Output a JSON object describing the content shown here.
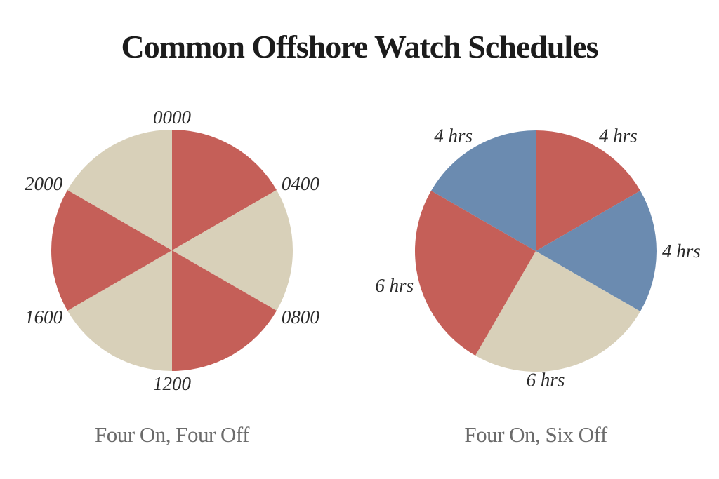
{
  "title": "Common Offshore Watch Schedules",
  "palette": {
    "red": "#c55f58",
    "cream": "#d8d0b9",
    "blue": "#6b8bb0",
    "title_color": "#1c1c1c",
    "caption_color": "#6b6b6b",
    "label_color": "#2b2b2b",
    "background": "#ffffff"
  },
  "chart_data": [
    {
      "type": "pie",
      "caption": "Four On, Four Off",
      "units": "hours",
      "total": 24,
      "start_angle_deg": 0,
      "legend": "none",
      "slices": [
        {
          "value": 4,
          "color": "red"
        },
        {
          "value": 4,
          "color": "cream"
        },
        {
          "value": 4,
          "color": "red"
        },
        {
          "value": 4,
          "color": "cream"
        },
        {
          "value": 4,
          "color": "red"
        },
        {
          "value": 4,
          "color": "cream"
        }
      ],
      "boundary_labels": [
        {
          "text": "0000",
          "angle": 0
        },
        {
          "text": "0400",
          "angle": 60
        },
        {
          "text": "0800",
          "angle": 120
        },
        {
          "text": "1200",
          "angle": 180
        },
        {
          "text": "1600",
          "angle": 240
        },
        {
          "text": "2000",
          "angle": 300
        }
      ]
    },
    {
      "type": "pie",
      "caption": "Four On, Six Off",
      "units": "hours",
      "total": 24,
      "start_angle_deg": 0,
      "legend": "none",
      "slices": [
        {
          "value": 4,
          "color": "red",
          "label": "4 hrs"
        },
        {
          "value": 4,
          "color": "blue",
          "label": "4 hrs"
        },
        {
          "value": 6,
          "color": "cream",
          "label": "6 hrs"
        },
        {
          "value": 6,
          "color": "red",
          "label": "6 hrs"
        },
        {
          "value": 4,
          "color": "blue",
          "label": "4 hrs"
        }
      ]
    }
  ]
}
